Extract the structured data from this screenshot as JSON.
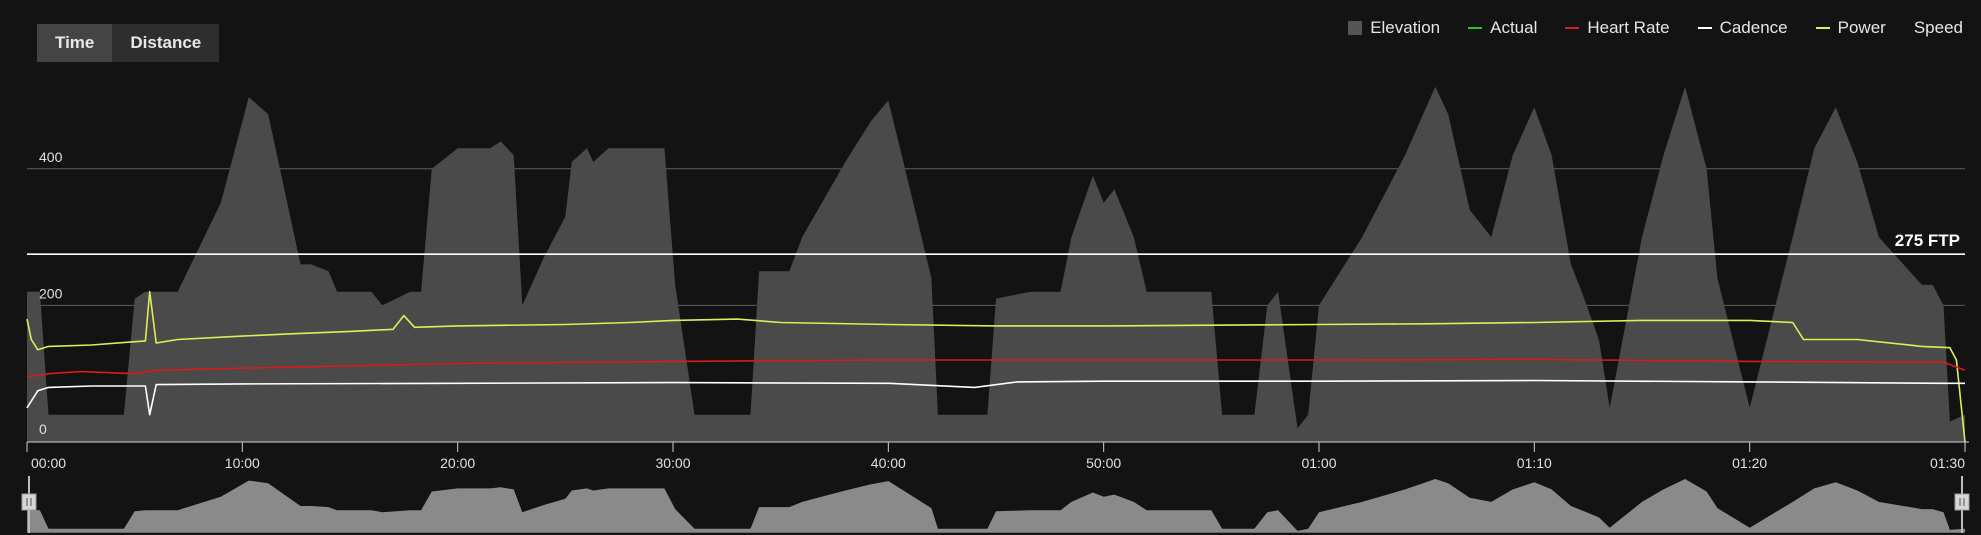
{
  "toggle": {
    "time_label": "Time",
    "distance_label": "Distance",
    "active": "time"
  },
  "legend": [
    {
      "label": "Elevation",
      "color": "#555555",
      "kind": "box"
    },
    {
      "label": "Actual",
      "color": "#27c227",
      "kind": "line"
    },
    {
      "label": "Heart Rate",
      "color": "#d81b1b",
      "kind": "line"
    },
    {
      "label": "Cadence",
      "color": "#ffffff",
      "kind": "line"
    },
    {
      "label": "Power",
      "color": "#dfee55",
      "kind": "line"
    },
    {
      "label": "Speed",
      "color": "",
      "kind": "none"
    }
  ],
  "ftp_label": "275 FTP",
  "chart_data": {
    "type": "line",
    "x_unit": "minutes",
    "x_ticks": [
      "00:00",
      "10:00",
      "20:00",
      "30:00",
      "40:00",
      "50:00",
      "01:00",
      "01:10",
      "01:20",
      "01:30"
    ],
    "xlim": [
      0,
      90
    ],
    "y_ticks": [
      "0",
      "200",
      "400"
    ],
    "ylim": [
      0,
      530
    ],
    "ftp": 275,
    "grid": true,
    "legend_position": "top-right",
    "series": [
      {
        "name": "Elevation",
        "color": "#555555",
        "x": [
          0,
          0.6,
          1,
          4.5,
          5,
          5.5,
          7,
          9,
          10.3,
          11.2,
          12.7,
          13.2,
          14,
          14.4,
          16,
          16.5,
          17.8,
          18.3,
          18.8,
          20,
          20.5,
          21,
          21.5,
          22,
          22.6,
          23,
          24,
          25,
          25.3,
          26,
          26.3,
          27,
          29,
          29.6,
          30.1,
          31,
          33.6,
          34,
          35.4,
          36,
          38,
          39.2,
          40,
          40.7,
          42,
          42.3,
          44.6,
          45,
          46.6,
          48,
          48.5,
          49.5,
          50,
          50.5,
          51.4,
          52,
          52.5,
          53.5,
          55,
          55.5,
          57,
          57.6,
          58.1,
          59,
          59.5,
          60,
          62,
          64,
          65.4,
          66,
          67,
          68,
          69,
          70,
          70.8,
          71.7,
          72.2,
          73,
          73.5,
          75,
          76,
          77,
          78,
          78.5,
          80,
          82,
          83,
          84,
          85,
          86,
          88,
          88.5,
          89,
          89.3,
          90
        ],
        "y": [
          220,
          220,
          40,
          40,
          210,
          220,
          220,
          350,
          505,
          480,
          260,
          260,
          250,
          220,
          220,
          200,
          220,
          220,
          400,
          430,
          430,
          430,
          430,
          440,
          420,
          200,
          270,
          330,
          410,
          430,
          410,
          430,
          430,
          430,
          230,
          40,
          40,
          250,
          250,
          300,
          410,
          470,
          500,
          410,
          240,
          40,
          40,
          210,
          220,
          220,
          300,
          390,
          350,
          370,
          300,
          220,
          220,
          220,
          220,
          40,
          40,
          200,
          220,
          20,
          40,
          200,
          300,
          420,
          520,
          480,
          340,
          300,
          420,
          490,
          420,
          260,
          220,
          150,
          50,
          300,
          420,
          520,
          400,
          240,
          50,
          300,
          430,
          490,
          410,
          300,
          230,
          230,
          200,
          30,
          40
        ]
      },
      {
        "name": "Power",
        "color": "#dfee55",
        "x": [
          0,
          0.2,
          0.5,
          1,
          3,
          5.5,
          5.7,
          6,
          7,
          10,
          12,
          15,
          17,
          17.5,
          18,
          20,
          25,
          28,
          30,
          33,
          35,
          40,
          45,
          50,
          55,
          60,
          65,
          70,
          75,
          80,
          82,
          82.5,
          85,
          88,
          89.3,
          89.6,
          90
        ],
        "y": [
          180,
          150,
          135,
          140,
          142,
          148,
          220,
          145,
          150,
          155,
          158,
          162,
          165,
          185,
          168,
          170,
          172,
          175,
          178,
          180,
          175,
          172,
          170,
          170,
          171,
          172,
          173,
          175,
          178,
          178,
          175,
          150,
          150,
          140,
          138,
          120,
          0
        ]
      },
      {
        "name": "Heart Rate",
        "color": "#d81b1b",
        "x": [
          0,
          1,
          2.5,
          5,
          6,
          10,
          20,
          30,
          40,
          50,
          60,
          70,
          80,
          89,
          90
        ],
        "y": [
          95,
          100,
          103,
          100,
          105,
          108,
          115,
          118,
          120,
          120,
          120,
          121,
          118,
          117,
          105
        ]
      },
      {
        "name": "Cadence",
        "color": "#ffffff",
        "x": [
          0,
          0.5,
          1,
          3,
          5.5,
          5.7,
          6,
          10,
          20,
          30,
          40,
          44,
          46,
          50,
          60,
          70,
          80,
          89,
          90
        ],
        "y": [
          50,
          75,
          80,
          82,
          82,
          40,
          84,
          85,
          86,
          87,
          86,
          80,
          88,
          89,
          89,
          90,
          88,
          86,
          86
        ]
      }
    ]
  }
}
